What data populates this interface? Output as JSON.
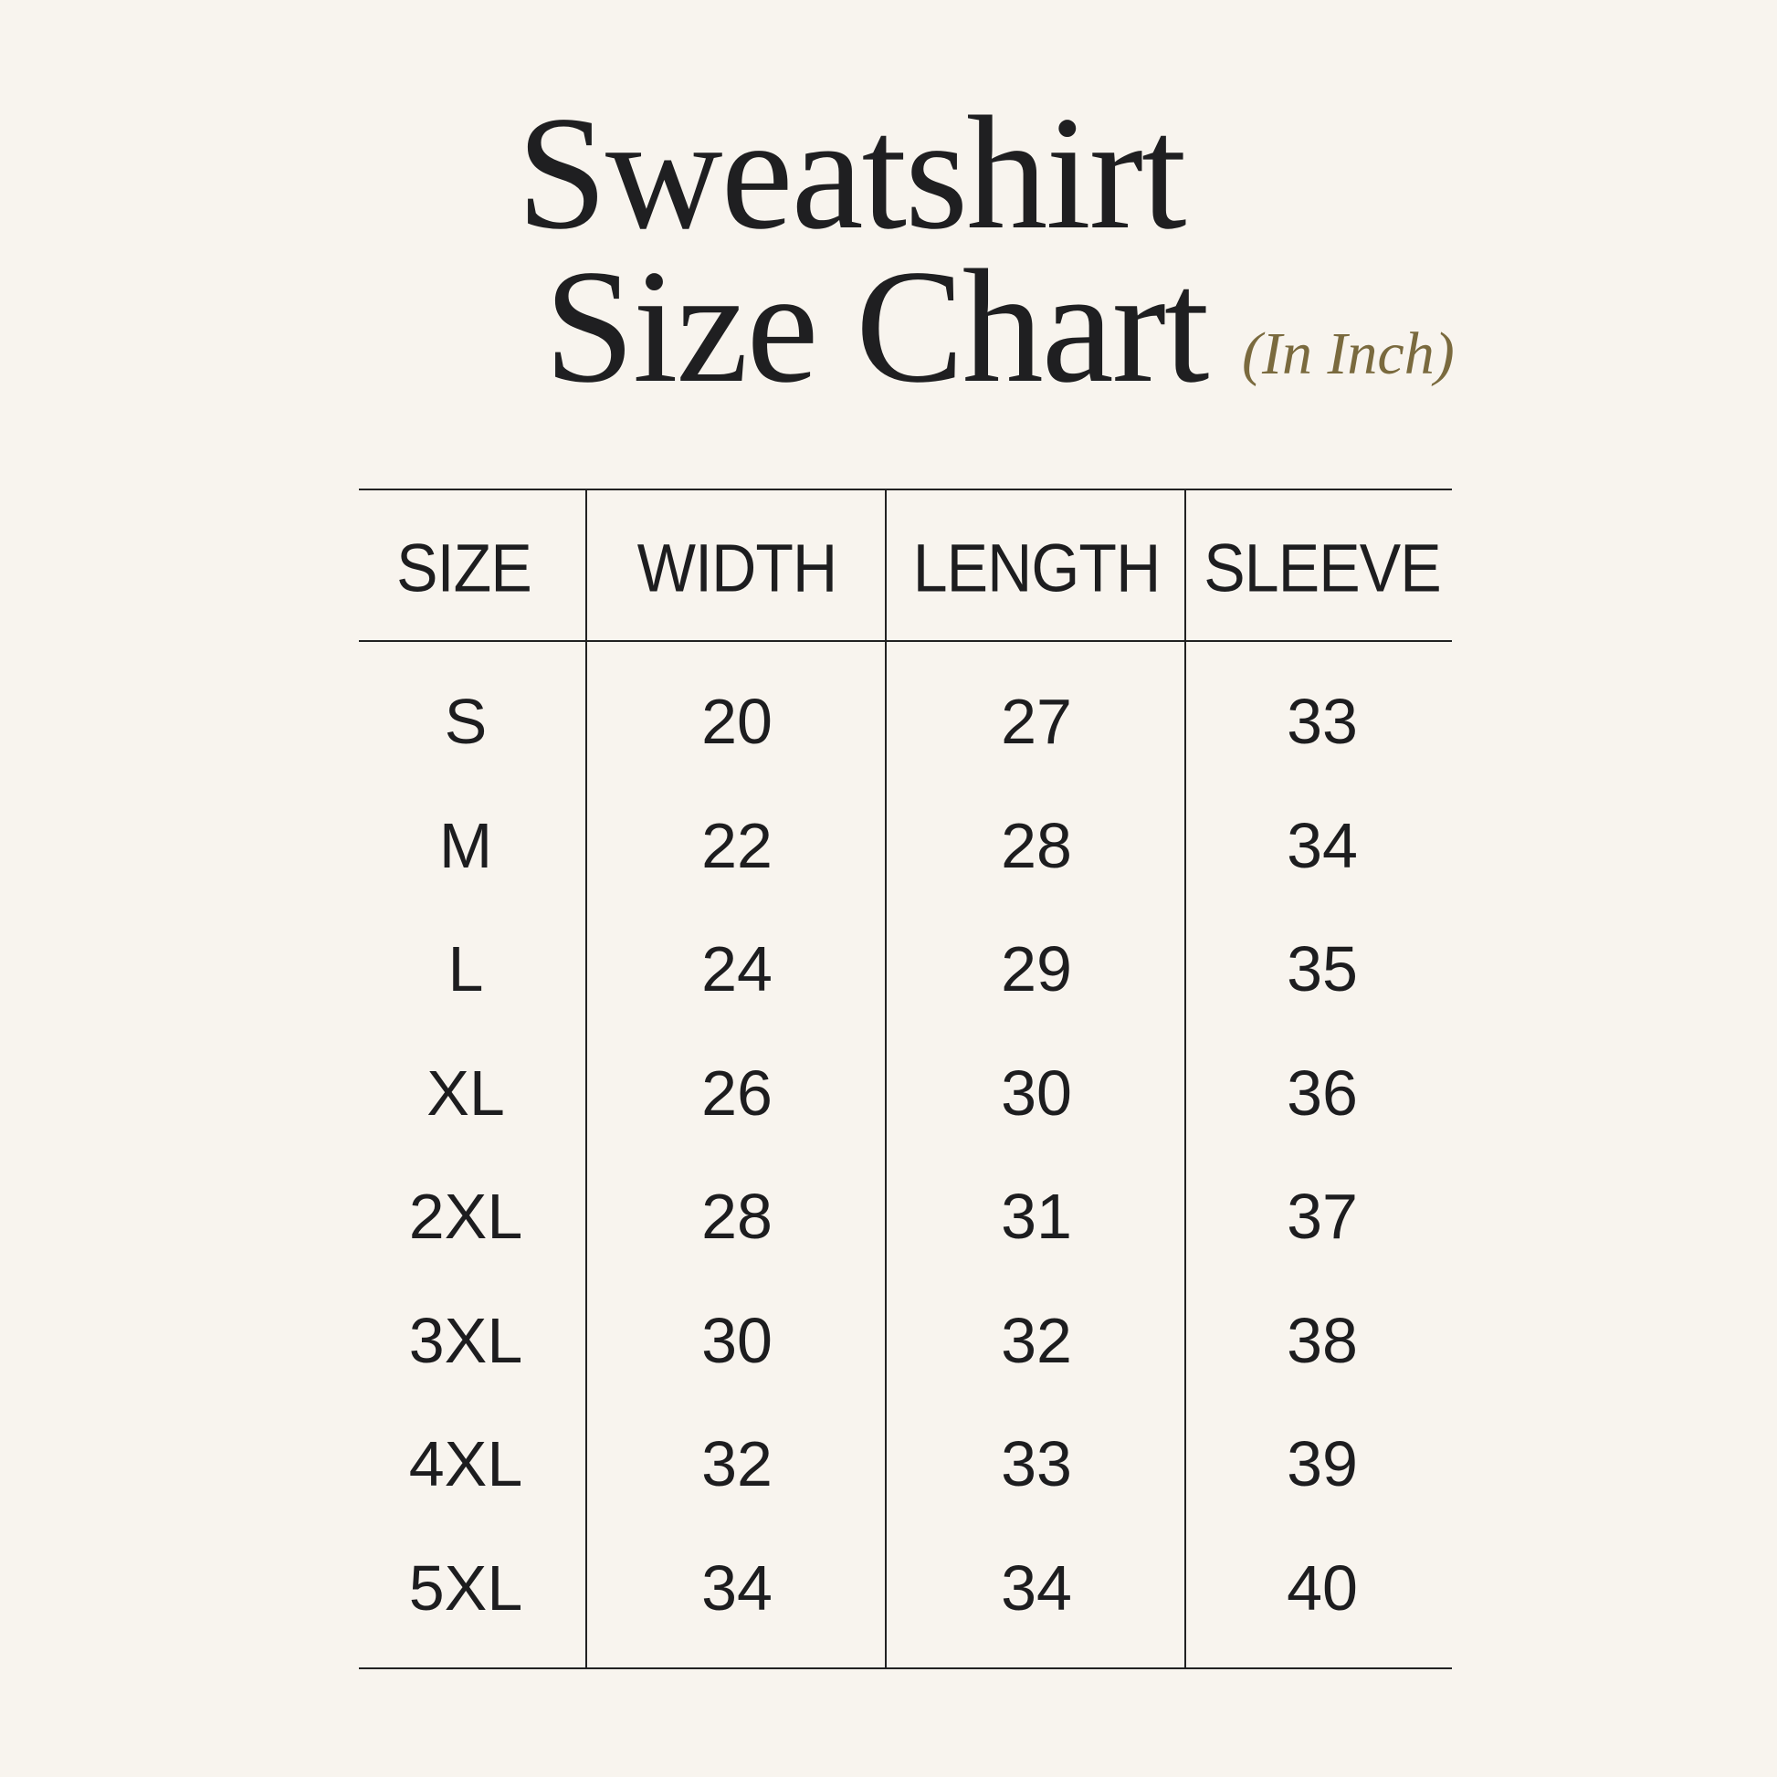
{
  "title": {
    "line1": "Sweatshirt",
    "line2": "Size Chart",
    "unit": "(In Inch)"
  },
  "colors": {
    "background": "#f8f4ee",
    "text": "#1f1f21",
    "unit_accent": "#7a6a3e",
    "rules": "#222222"
  },
  "table": {
    "headers": [
      "SIZE",
      "WIDTH",
      "LENGTH",
      "SLEEVE"
    ],
    "rows": [
      [
        "S",
        "20",
        "27",
        "33"
      ],
      [
        "M",
        "22",
        "28",
        "34"
      ],
      [
        "L",
        "24",
        "29",
        "35"
      ],
      [
        "XL",
        "26",
        "30",
        "36"
      ],
      [
        "2XL",
        "28",
        "31",
        "37"
      ],
      [
        "3XL",
        "30",
        "32",
        "38"
      ],
      [
        "4XL",
        "32",
        "33",
        "39"
      ],
      [
        "5XL",
        "34",
        "34",
        "40"
      ]
    ]
  }
}
